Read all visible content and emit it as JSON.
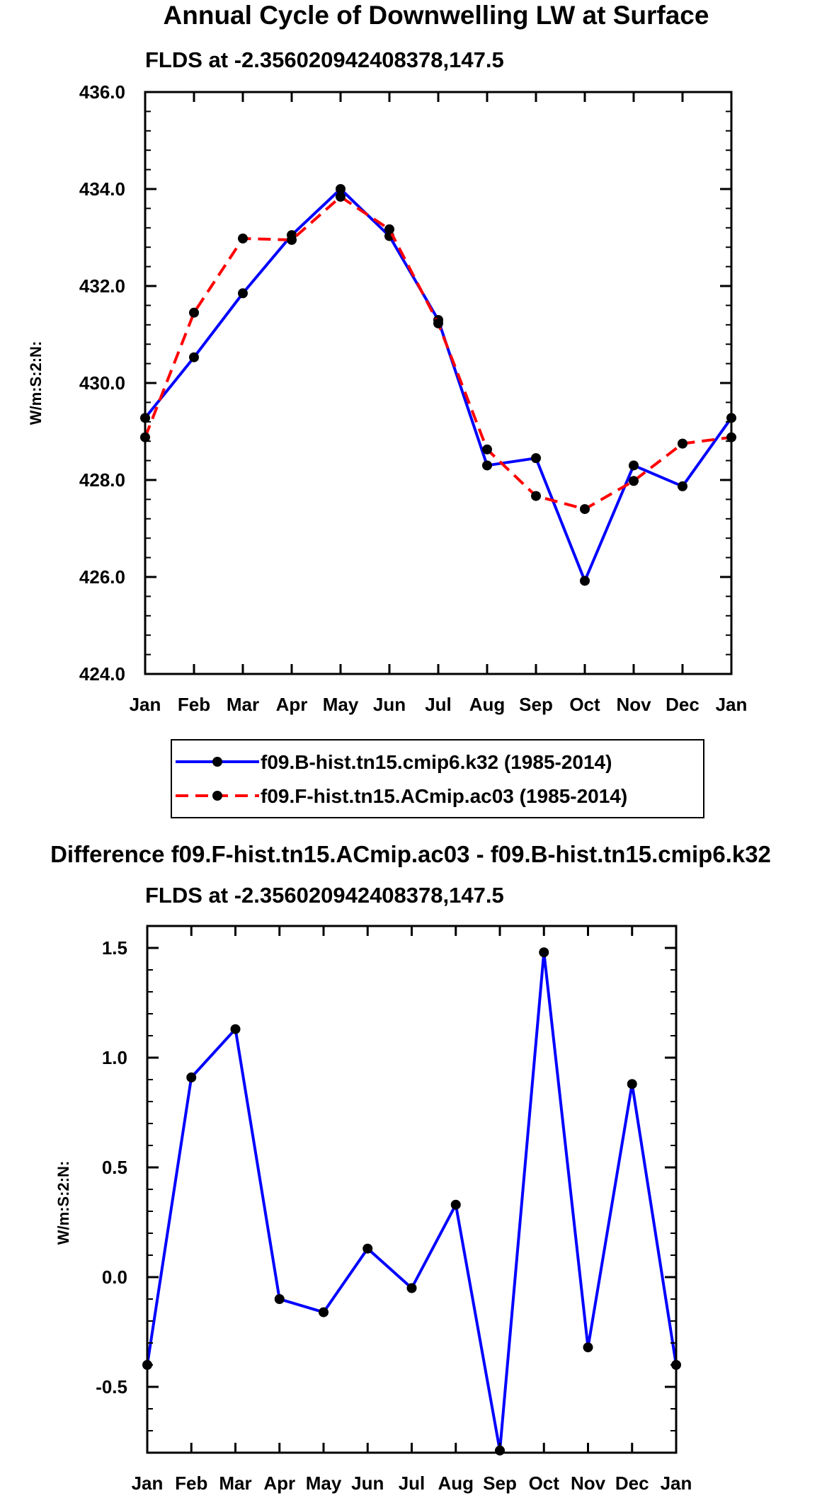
{
  "chart_data": [
    {
      "type": "line",
      "title": "Annual Cycle of Downwelling LW at Surface",
      "subtitle": "FLDS at -2.356020942408378,147.5",
      "xlabel": "",
      "ylabel": "W/m:S:2:N:",
      "categories": [
        "Jan",
        "Feb",
        "Mar",
        "Apr",
        "May",
        "Jun",
        "Jul",
        "Aug",
        "Sep",
        "Oct",
        "Nov",
        "Dec",
        "Jan"
      ],
      "ylim": [
        424.0,
        436.0
      ],
      "yticks": [
        "424.0",
        "426.0",
        "428.0",
        "430.0",
        "432.0",
        "434.0",
        "436.0"
      ],
      "series": [
        {
          "name": "f09.B-hist.tn15.cmip6.k32 (1985-2014)",
          "color": "#0000ff",
          "dash": "solid",
          "values": [
            429.28,
            430.53,
            431.85,
            433.05,
            434.0,
            433.03,
            431.3,
            428.3,
            428.45,
            425.92,
            428.3,
            427.87,
            429.28
          ]
        },
        {
          "name": "f09.F-hist.tn15.ACmip.ac03 (1985-2014)",
          "color": "#ff0000",
          "dash": "dashed",
          "values": [
            428.88,
            431.45,
            432.98,
            432.95,
            433.84,
            433.17,
            431.23,
            428.63,
            427.67,
            427.4,
            427.98,
            428.75,
            428.88
          ]
        }
      ]
    },
    {
      "type": "line",
      "title": "Difference f09.F-hist.tn15.ACmip.ac03 - f09.B-hist.tn15.cmip6.k32",
      "subtitle": "FLDS at -2.356020942408378,147.5",
      "xlabel": "",
      "ylabel": "W/m:S:2:N:",
      "categories": [
        "Jan",
        "Feb",
        "Mar",
        "Apr",
        "May",
        "Jun",
        "Jul",
        "Aug",
        "Sep",
        "Oct",
        "Nov",
        "Dec",
        "Jan"
      ],
      "ylim": [
        -0.8,
        1.6
      ],
      "yticks": [
        "-0.5",
        "0.0",
        "0.5",
        "1.0",
        "1.5"
      ],
      "series": [
        {
          "name": "difference",
          "color": "#0000ff",
          "dash": "solid",
          "values": [
            -0.4,
            0.91,
            1.13,
            -0.1,
            -0.16,
            0.13,
            -0.05,
            0.33,
            -0.79,
            1.48,
            -0.32,
            0.88,
            -0.4
          ]
        }
      ]
    }
  ]
}
